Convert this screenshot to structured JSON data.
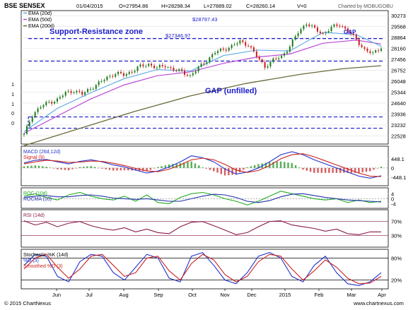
{
  "header": {
    "symbol": "BSE SENSEX",
    "date": "01/04/2015",
    "open": "O=27954.86",
    "high": "H=28298.34",
    "low": "L=27889.02",
    "close": "C=28260.14",
    "volume": "V=0",
    "credit": "Charted by MOBUGOBU"
  },
  "footer": {
    "copyright": "© 2015 ChartNexus",
    "url": "www.chartnexus.com"
  },
  "x_labels": [
    "Jun",
    "Jul",
    "Aug",
    "Sep",
    "Oct",
    "Nov",
    "Dec",
    "2015",
    "Feb",
    "Mar",
    "Apr"
  ],
  "annotations": {
    "support_resistance": "Support-Resistance zone",
    "gap_unfilled": "GAP (unfilled)",
    "gap": "GAP",
    "level_high": "$28797.43",
    "level_low": "$27346.97"
  },
  "colors": {
    "background": "#ffffff",
    "frame": "#000000",
    "annotation_blue": "#1a1acc",
    "ema20": "#5aa9e6",
    "ema50": "#b84ad6",
    "ema200": "#6b6b3a",
    "candle_up": "#1a7a1a",
    "candle_down": "#cc1a1a",
    "macd": "#2233cc",
    "signal": "#cc2222",
    "roc": "#22aa22",
    "rocma": "#2233aa",
    "rsi": "#8a1a4a",
    "stoch_k": "#2233cc",
    "stoch_d": "#cc2222"
  },
  "chart_data": [
    {
      "type": "candlestick",
      "title": "BSE SENSEX",
      "legend": [
        "EMA (20d)",
        "EMA (50d)",
        "EMA (200d)"
      ],
      "legend_placement": "top-left",
      "y_ticks": [
        30273,
        29568,
        28864,
        28160,
        27456,
        26752,
        26048,
        25344,
        24640,
        23936,
        23232,
        22528
      ],
      "ylim": [
        22000,
        30600
      ],
      "y_ticks_left": [
        "1",
        "1",
        "1",
        "0",
        "0"
      ],
      "levels": {
        "resistance": 28797.43,
        "support": 27346.97,
        "gap_unfilled": 23750
      },
      "close_path": [
        {
          "x": 0,
          "y": 22600
        },
        {
          "x": 3,
          "y": 23900
        },
        {
          "x": 6,
          "y": 24400
        },
        {
          "x": 9,
          "y": 24700
        },
        {
          "x": 12,
          "y": 24850
        },
        {
          "x": 15,
          "y": 25300
        },
        {
          "x": 18,
          "y": 25450
        },
        {
          "x": 21,
          "y": 25200
        },
        {
          "x": 24,
          "y": 25600
        },
        {
          "x": 27,
          "y": 25900
        },
        {
          "x": 30,
          "y": 26300
        },
        {
          "x": 33,
          "y": 26550
        },
        {
          "x": 36,
          "y": 26450
        },
        {
          "x": 39,
          "y": 26700
        },
        {
          "x": 42,
          "y": 27000
        },
        {
          "x": 45,
          "y": 27150
        },
        {
          "x": 48,
          "y": 26900
        },
        {
          "x": 51,
          "y": 27050
        },
        {
          "x": 54,
          "y": 26800
        },
        {
          "x": 57,
          "y": 26650
        },
        {
          "x": 60,
          "y": 26400
        },
        {
          "x": 63,
          "y": 26900
        },
        {
          "x": 66,
          "y": 27400
        },
        {
          "x": 69,
          "y": 27900
        },
        {
          "x": 72,
          "y": 28100
        },
        {
          "x": 75,
          "y": 28300
        },
        {
          "x": 78,
          "y": 28600
        },
        {
          "x": 81,
          "y": 28400
        },
        {
          "x": 84,
          "y": 27650
        },
        {
          "x": 87,
          "y": 27000
        },
        {
          "x": 90,
          "y": 27400
        },
        {
          "x": 93,
          "y": 27650
        },
        {
          "x": 96,
          "y": 28300
        },
        {
          "x": 99,
          "y": 29200
        },
        {
          "x": 102,
          "y": 29800
        },
        {
          "x": 105,
          "y": 29400
        },
        {
          "x": 108,
          "y": 29100
        },
        {
          "x": 111,
          "y": 29500
        },
        {
          "x": 114,
          "y": 29700
        },
        {
          "x": 117,
          "y": 29300
        },
        {
          "x": 120,
          "y": 28700
        },
        {
          "x": 123,
          "y": 28100
        },
        {
          "x": 126,
          "y": 27800
        },
        {
          "x": 129,
          "y": 28260
        }
      ],
      "ema20": [
        {
          "x": 0,
          "y": 22800
        },
        {
          "x": 12,
          "y": 24300
        },
        {
          "x": 24,
          "y": 25300
        },
        {
          "x": 36,
          "y": 26200
        },
        {
          "x": 48,
          "y": 26800
        },
        {
          "x": 60,
          "y": 26700
        },
        {
          "x": 72,
          "y": 27700
        },
        {
          "x": 84,
          "y": 28050
        },
        {
          "x": 96,
          "y": 28000
        },
        {
          "x": 108,
          "y": 29200
        },
        {
          "x": 120,
          "y": 29050
        },
        {
          "x": 129,
          "y": 28300
        }
      ],
      "ema50": [
        {
          "x": 0,
          "y": 22700
        },
        {
          "x": 12,
          "y": 23800
        },
        {
          "x": 24,
          "y": 24900
        },
        {
          "x": 36,
          "y": 25800
        },
        {
          "x": 48,
          "y": 26400
        },
        {
          "x": 60,
          "y": 26650
        },
        {
          "x": 72,
          "y": 27200
        },
        {
          "x": 84,
          "y": 27600
        },
        {
          "x": 96,
          "y": 27800
        },
        {
          "x": 108,
          "y": 28500
        },
        {
          "x": 120,
          "y": 28700
        },
        {
          "x": 129,
          "y": 28450
        }
      ],
      "ema200": [
        {
          "x": 0,
          "y": 21900
        },
        {
          "x": 20,
          "y": 23000
        },
        {
          "x": 40,
          "y": 24100
        },
        {
          "x": 60,
          "y": 25100
        },
        {
          "x": 80,
          "y": 25900
        },
        {
          "x": 100,
          "y": 26500
        },
        {
          "x": 115,
          "y": 26850
        },
        {
          "x": 129,
          "y": 27050
        }
      ]
    },
    {
      "type": "line",
      "legend": [
        "MACD (26d,12d)",
        "Signal (9)"
      ],
      "y_ticks": [
        448.1,
        0,
        -448.1
      ],
      "ylim": [
        -800,
        1000
      ],
      "series": [
        {
          "name": "MACD (26d,12d)",
          "values": [
            250,
            380,
            420,
            300,
            200,
            320,
            400,
            300,
            150,
            50,
            -100,
            -250,
            -150,
            50,
            300,
            600,
            500,
            300,
            -50,
            -300,
            -200,
            0,
            300,
            650,
            800,
            650,
            400,
            200,
            0,
            -200,
            -400,
            -500,
            -380
          ]
        },
        {
          "name": "Signal (9)",
          "values": [
            200,
            300,
            380,
            340,
            270,
            290,
            340,
            320,
            230,
            120,
            -20,
            -150,
            -180,
            -60,
            150,
            400,
            480,
            400,
            180,
            -100,
            -220,
            -120,
            120,
            450,
            650,
            700,
            550,
            350,
            150,
            -50,
            -250,
            -400,
            -420
          ]
        }
      ]
    },
    {
      "type": "line",
      "legend": [
        "ROC (10d)",
        "ROCMA (10)"
      ],
      "y_ticks": [
        4,
        0,
        -4
      ],
      "ylim": [
        -6.5,
        7.5
      ],
      "series": [
        {
          "name": "ROC (10d)",
          "values": [
            2,
            4,
            1,
            -1,
            3,
            5,
            2,
            0,
            -1,
            2,
            -2,
            3,
            -3,
            -4,
            1,
            4,
            5,
            3,
            0,
            -2,
            -5,
            -2,
            2,
            6,
            4,
            2,
            0,
            -1,
            0,
            -3,
            -1,
            -3,
            -2
          ]
        },
        {
          "name": "ROCMA (10)",
          "values": [
            1,
            2,
            2.5,
            1.5,
            1.5,
            2.5,
            3,
            2,
            0.5,
            0,
            -0.5,
            0,
            -1,
            -2,
            -2,
            0,
            2,
            3.5,
            3,
            1,
            -2,
            -3,
            -1.5,
            1.5,
            3.5,
            4,
            2.5,
            1,
            0,
            -1,
            -1.5,
            -2,
            -2.5
          ]
        }
      ]
    },
    {
      "type": "line",
      "legend": [
        "RSI (14d)"
      ],
      "y_ticks": [
        "70%",
        "30%"
      ],
      "ylim": [
        0,
        100
      ],
      "series": [
        {
          "name": "RSI (14d)",
          "values": [
            72,
            60,
            68,
            55,
            65,
            70,
            58,
            50,
            45,
            52,
            40,
            48,
            38,
            35,
            55,
            68,
            70,
            58,
            45,
            32,
            38,
            55,
            70,
            72,
            60,
            55,
            50,
            42,
            48,
            35,
            32,
            40,
            40
          ]
        }
      ]
    },
    {
      "type": "line",
      "legend": [
        "Stochastic %K (14d)",
        "%D (3)",
        "Smoothed %D (3)"
      ],
      "y_ticks": [
        "80%",
        "20%"
      ],
      "ylim": [
        0,
        100
      ],
      "series": [
        {
          "name": "%D (3)",
          "values": [
            60,
            90,
            85,
            30,
            15,
            70,
            90,
            85,
            40,
            20,
            55,
            90,
            80,
            25,
            15,
            85,
            95,
            60,
            20,
            10,
            40,
            85,
            95,
            80,
            30,
            15,
            60,
            85,
            40,
            10,
            5,
            15,
            40
          ]
        },
        {
          "name": "Smoothed %D (3)",
          "values": [
            50,
            80,
            90,
            55,
            25,
            50,
            85,
            90,
            60,
            30,
            40,
            80,
            85,
            45,
            20,
            65,
            90,
            75,
            35,
            15,
            30,
            70,
            90,
            85,
            50,
            20,
            45,
            75,
            55,
            25,
            10,
            12,
            30
          ]
        }
      ]
    }
  ]
}
